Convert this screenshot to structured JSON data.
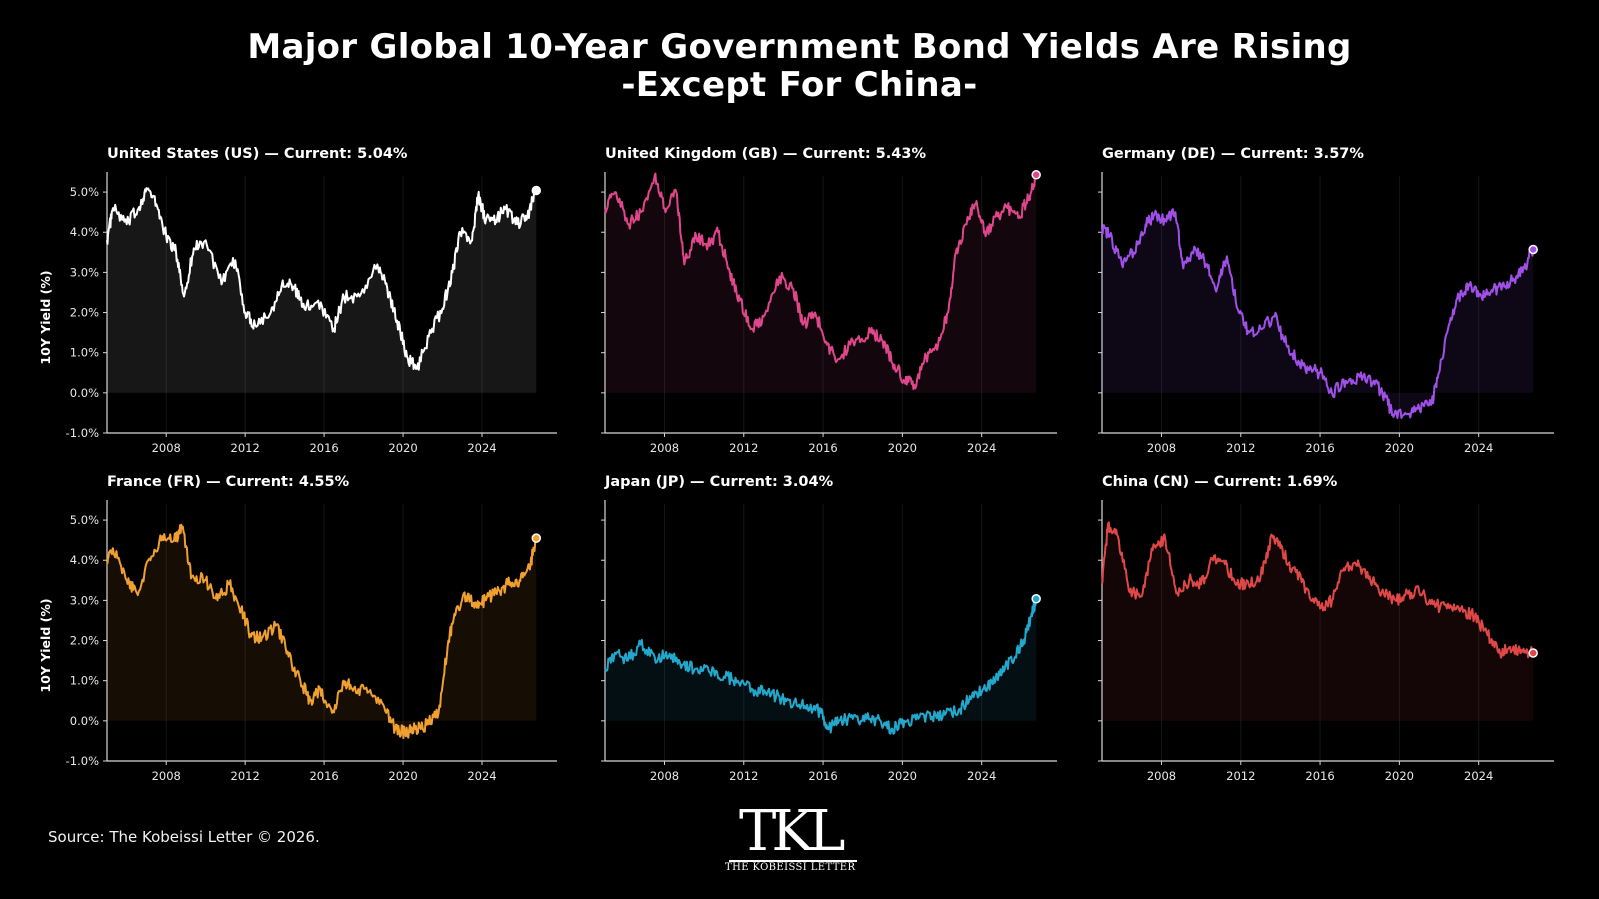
{
  "header": {
    "title_line1": "Major Global 10-Year Government Bond Yields Are Rising",
    "title_line2": "-Except For China-"
  },
  "footer": {
    "source": "Source: The Kobeissi Letter © 2026.",
    "logo_mark": "TKL",
    "logo_sub": "THE KOBEISSI LETTER"
  },
  "chart_data": [
    {
      "type": "area",
      "title": "United States (US)  —  Current: 5.04%",
      "ylabel": "10Y Yield (%)",
      "color": "#ffffff",
      "xlim": [
        2005,
        2027.8
      ],
      "ylim": [
        -1.0,
        5.5
      ],
      "yticks": [
        -1,
        0,
        1,
        2,
        3,
        4,
        5
      ],
      "ytick_labels": [
        "-1.0%",
        "0.0%",
        "1.0%",
        "2.0%",
        "3.0%",
        "4.0%",
        "5.0%"
      ],
      "xticks": [
        2008,
        2012,
        2016,
        2020,
        2024
      ],
      "xtick_labels": [
        "2008",
        "2012",
        "2016",
        "2020",
        "2024"
      ],
      "x": [
        2005.0,
        2005.3,
        2006.0,
        2006.6,
        2007.0,
        2007.5,
        2008.0,
        2008.5,
        2008.9,
        2009.4,
        2010.0,
        2010.8,
        2011.5,
        2012.0,
        2012.5,
        2013.3,
        2013.9,
        2014.5,
        2015.0,
        2015.7,
        2016.5,
        2017.0,
        2017.8,
        2018.7,
        2019.2,
        2019.7,
        2020.2,
        2020.7,
        2021.3,
        2022.0,
        2022.5,
        2022.9,
        2023.5,
        2023.8,
        2024.2,
        2024.7,
        2025.2,
        2025.8,
        2026.3,
        2026.75
      ],
      "y": [
        3.8,
        4.6,
        4.2,
        4.6,
        5.1,
        4.7,
        3.9,
        3.5,
        2.4,
        3.6,
        3.8,
        2.7,
        3.3,
        2.0,
        1.7,
        2.0,
        2.8,
        2.6,
        2.1,
        2.3,
        1.6,
        2.4,
        2.4,
        3.2,
        2.6,
        1.8,
        0.9,
        0.6,
        1.4,
        2.1,
        3.0,
        4.0,
        3.8,
        4.9,
        4.3,
        4.3,
        4.6,
        4.2,
        4.4,
        5.04
      ],
      "current": 5.04
    },
    {
      "type": "area",
      "title": "United Kingdom (GB)  —  Current: 5.43%",
      "ylabel": "",
      "color": "#e0468b",
      "xlim": [
        2005,
        2027.8
      ],
      "ylim": [
        -1.0,
        5.5
      ],
      "yticks": [
        -1,
        0,
        1,
        2,
        3,
        4,
        5
      ],
      "ytick_labels": [],
      "xticks": [
        2008,
        2012,
        2016,
        2020,
        2024
      ],
      "xtick_labels": [
        "2008",
        "2012",
        "2016",
        "2020",
        "2024"
      ],
      "x": [
        2005.0,
        2005.5,
        2006.2,
        2006.8,
        2007.5,
        2008.0,
        2008.6,
        2009.0,
        2009.6,
        2010.2,
        2010.7,
        2011.3,
        2011.8,
        2012.4,
        2013.0,
        2013.8,
        2014.5,
        2015.0,
        2015.6,
        2016.2,
        2016.7,
        2017.5,
        2018.4,
        2019.0,
        2019.6,
        2020.1,
        2020.6,
        2021.2,
        2021.8,
        2022.3,
        2022.7,
        2023.2,
        2023.7,
        2024.2,
        2024.8,
        2025.3,
        2025.9,
        2026.4,
        2026.75
      ],
      "y": [
        4.6,
        5.0,
        4.2,
        4.5,
        5.4,
        4.6,
        5.0,
        3.2,
        3.9,
        3.7,
        4.0,
        3.0,
        2.3,
        1.6,
        1.9,
        2.9,
        2.6,
        1.7,
        2.0,
        1.2,
        0.8,
        1.3,
        1.5,
        1.3,
        0.7,
        0.3,
        0.2,
        0.9,
        1.2,
        2.0,
        3.5,
        4.2,
        4.7,
        3.9,
        4.4,
        4.6,
        4.4,
        4.9,
        5.43
      ],
      "current": 5.43
    },
    {
      "type": "area",
      "title": "Germany (DE)  —  Current: 3.57%",
      "ylabel": "",
      "color": "#a050e8",
      "xlim": [
        2005,
        2027.8
      ],
      "ylim": [
        -1.0,
        5.5
      ],
      "yticks": [
        -1,
        0,
        1,
        2,
        3,
        4,
        5
      ],
      "ytick_labels": [],
      "xticks": [
        2008,
        2012,
        2016,
        2020,
        2024
      ],
      "xtick_labels": [
        "2008",
        "2012",
        "2016",
        "2020",
        "2024"
      ],
      "x": [
        2005.0,
        2005.4,
        2006.0,
        2006.6,
        2007.2,
        2007.6,
        2008.2,
        2008.7,
        2009.1,
        2009.7,
        2010.3,
        2010.8,
        2011.3,
        2011.9,
        2012.4,
        2013.0,
        2013.7,
        2014.3,
        2014.9,
        2015.4,
        2016.0,
        2016.6,
        2017.3,
        2018.0,
        2018.7,
        2019.3,
        2019.7,
        2020.3,
        2020.9,
        2021.6,
        2022.0,
        2022.5,
        2023.0,
        2023.5,
        2024.0,
        2024.6,
        2025.2,
        2025.8,
        2026.3,
        2026.75
      ],
      "y": [
        4.1,
        3.9,
        3.2,
        3.5,
        4.2,
        4.4,
        4.3,
        4.5,
        3.1,
        3.6,
        3.2,
        2.6,
        3.4,
        2.0,
        1.5,
        1.6,
        1.9,
        1.2,
        0.8,
        0.6,
        0.5,
        0.0,
        0.3,
        0.4,
        0.3,
        -0.1,
        -0.6,
        -0.5,
        -0.4,
        -0.3,
        0.5,
        1.7,
        2.4,
        2.7,
        2.4,
        2.5,
        2.7,
        2.8,
        3.1,
        3.57
      ],
      "current": 3.57
    },
    {
      "type": "area",
      "title": "France (FR)  —  Current: 4.55%",
      "ylabel": "10Y Yield (%)",
      "color": "#f0a030",
      "xlim": [
        2005,
        2027.8
      ],
      "ylim": [
        -1.0,
        5.5
      ],
      "yticks": [
        -1,
        0,
        1,
        2,
        3,
        4,
        5
      ],
      "ytick_labels": [
        "-1.0%",
        "0.0%",
        "1.0%",
        "2.0%",
        "3.0%",
        "4.0%",
        "5.0%"
      ],
      "xticks": [
        2008,
        2012,
        2016,
        2020,
        2024
      ],
      "xtick_labels": [
        "2008",
        "2012",
        "2016",
        "2020",
        "2024"
      ],
      "x": [
        2005.0,
        2005.3,
        2006.0,
        2006.5,
        2007.2,
        2007.8,
        2008.4,
        2008.8,
        2009.3,
        2010.0,
        2010.6,
        2011.2,
        2011.8,
        2012.3,
        2012.9,
        2013.6,
        2014.2,
        2014.8,
        2015.3,
        2015.8,
        2016.4,
        2017.0,
        2017.5,
        2018.2,
        2019.0,
        2019.6,
        2020.1,
        2020.6,
        2021.2,
        2021.8,
        2022.3,
        2022.7,
        2023.2,
        2023.7,
        2024.2,
        2024.7,
        2025.3,
        2025.9,
        2026.4,
        2026.75
      ],
      "y": [
        4.0,
        4.3,
        3.5,
        3.2,
        4.0,
        4.6,
        4.5,
        4.8,
        3.6,
        3.5,
        3.0,
        3.4,
        2.8,
        2.1,
        2.1,
        2.4,
        1.6,
        1.0,
        0.5,
        0.8,
        0.2,
        1.0,
        0.8,
        0.7,
        0.4,
        -0.2,
        -0.3,
        -0.2,
        -0.1,
        0.2,
        2.0,
        2.8,
        3.1,
        2.9,
        3.0,
        3.2,
        3.4,
        3.5,
        3.8,
        4.55
      ],
      "current": 4.55
    },
    {
      "type": "area",
      "title": "Japan (JP)  —  Current: 3.04%",
      "ylabel": "",
      "color": "#22a8cc",
      "xlim": [
        2005,
        2027.8
      ],
      "ylim": [
        -1.0,
        5.5
      ],
      "yticks": [
        -1,
        0,
        1,
        2,
        3,
        4,
        5
      ],
      "ytick_labels": [],
      "xticks": [
        2008,
        2012,
        2016,
        2020,
        2024
      ],
      "xtick_labels": [
        "2008",
        "2012",
        "2016",
        "2020",
        "2024"
      ],
      "x": [
        2005.0,
        2005.5,
        2006.1,
        2006.8,
        2007.5,
        2008.2,
        2008.9,
        2009.6,
        2010.3,
        2011.0,
        2011.7,
        2012.4,
        2013.1,
        2013.8,
        2014.5,
        2015.2,
        2015.9,
        2016.3,
        2016.8,
        2017.5,
        2018.2,
        2018.9,
        2019.5,
        2020.1,
        2020.8,
        2021.5,
        2022.2,
        2022.9,
        2023.5,
        2024.1,
        2024.7,
        2025.2,
        2025.7,
        2026.2,
        2026.5,
        2026.75
      ],
      "y": [
        1.3,
        1.7,
        1.5,
        1.9,
        1.6,
        1.6,
        1.4,
        1.3,
        1.2,
        1.1,
        1.0,
        0.8,
        0.7,
        0.6,
        0.4,
        0.4,
        0.2,
        -0.2,
        0.0,
        0.05,
        0.05,
        0.0,
        -0.2,
        0.0,
        0.05,
        0.1,
        0.2,
        0.3,
        0.6,
        0.8,
        1.0,
        1.4,
        1.6,
        2.1,
        2.6,
        3.04
      ],
      "current": 3.04
    },
    {
      "type": "area",
      "title": "China (CN)  —  Current: 1.69%",
      "ylabel": "",
      "color": "#e04848",
      "xlim": [
        2005,
        2027.8
      ],
      "ylim": [
        -1.0,
        5.5
      ],
      "yticks": [
        -1,
        0,
        1,
        2,
        3,
        4,
        5
      ],
      "ytick_labels": [],
      "xticks": [
        2008,
        2012,
        2016,
        2020,
        2024
      ],
      "xtick_labels": [
        "2008",
        "2012",
        "2016",
        "2020",
        "2024"
      ],
      "x": [
        2005.0,
        2005.3,
        2005.8,
        2006.4,
        2007.0,
        2007.6,
        2008.2,
        2008.8,
        2009.4,
        2010.0,
        2010.6,
        2011.2,
        2011.8,
        2012.4,
        2013.0,
        2013.6,
        2014.0,
        2014.6,
        2015.3,
        2016.0,
        2016.6,
        2017.2,
        2017.8,
        2018.5,
        2019.1,
        2019.8,
        2020.4,
        2021.0,
        2021.7,
        2022.4,
        2023.1,
        2023.8,
        2024.4,
        2025.0,
        2025.5,
        2026.0,
        2026.4,
        2026.75
      ],
      "y": [
        3.4,
        4.9,
        4.6,
        3.2,
        3.1,
        4.4,
        4.5,
        3.2,
        3.5,
        3.4,
        4.0,
        3.9,
        3.4,
        3.4,
        3.6,
        4.6,
        4.3,
        3.8,
        3.3,
        2.8,
        3.0,
        3.8,
        3.9,
        3.6,
        3.2,
        3.0,
        3.2,
        3.2,
        2.9,
        2.8,
        2.8,
        2.6,
        2.2,
        1.7,
        1.8,
        1.8,
        1.7,
        1.69
      ],
      "current": 1.69
    }
  ]
}
